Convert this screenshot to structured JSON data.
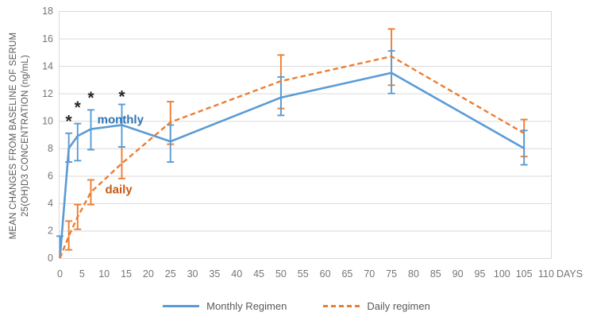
{
  "chart_data": {
    "type": "line",
    "title": "",
    "x_unit_label": "DAYS",
    "y_axis_title_lines": [
      "MEAN CHANGES FROM BASELINE OF SERUM",
      "25(OH)D3 CONCENTRATION (ng/mL)"
    ],
    "xlim": [
      0,
      110
    ],
    "ylim": [
      0,
      18
    ],
    "x_ticks": [
      0,
      5,
      10,
      15,
      20,
      25,
      30,
      35,
      40,
      45,
      50,
      55,
      60,
      65,
      70,
      75,
      80,
      85,
      90,
      95,
      100,
      105,
      110
    ],
    "y_ticks": [
      0,
      2,
      4,
      6,
      8,
      10,
      12,
      14,
      16,
      18
    ],
    "grid": "horizontal",
    "days": [
      0,
      2,
      4,
      7,
      14,
      25,
      50,
      75,
      105
    ],
    "series": [
      {
        "name": "Monthly Regimen",
        "color": "#5B9BD5",
        "line_style": "solid",
        "values": [
          0,
          8.0,
          8.9,
          9.4,
          9.7,
          8.5,
          11.7,
          13.5,
          8.0
        ],
        "err_high": [
          1.6,
          9.1,
          9.8,
          10.8,
          11.2,
          9.7,
          13.2,
          15.1,
          9.3
        ],
        "err_low": [
          0,
          7.0,
          7.1,
          7.9,
          8.1,
          7.0,
          10.4,
          12.0,
          6.8
        ]
      },
      {
        "name": "Daily regimen",
        "color": "#ED7D31",
        "line_style": "dashed",
        "values": [
          0,
          1.6,
          3.0,
          4.8,
          6.9,
          9.9,
          12.9,
          14.7,
          9.1
        ],
        "err_high": [
          0,
          2.7,
          3.9,
          5.7,
          8.1,
          11.4,
          14.8,
          16.7,
          10.1
        ],
        "err_low": [
          0,
          0.6,
          2.1,
          3.9,
          5.8,
          8.3,
          10.9,
          12.6,
          7.4
        ]
      }
    ],
    "annotations": [
      {
        "text": "monthly",
        "day": 13.7,
        "value": 10.1,
        "color": "#2E75B6"
      },
      {
        "text": "daily",
        "day": 13.3,
        "value": 5.0,
        "color": "#C55A11"
      }
    ],
    "significance_marks": {
      "symbol": "*",
      "points": [
        {
          "day": 2,
          "value": 10.1
        },
        {
          "day": 4,
          "value": 11.1
        },
        {
          "day": 7,
          "value": 11.8
        },
        {
          "day": 14,
          "value": 11.9
        }
      ]
    },
    "legend": {
      "position": "bottom",
      "items": [
        "Monthly Regimen",
        "Daily regimen"
      ]
    }
  },
  "styles": {
    "grid_color": "#D9D9D9",
    "tick_color": "#757575",
    "asterisk_color": "#262626",
    "background": "#FFFFFF"
  }
}
